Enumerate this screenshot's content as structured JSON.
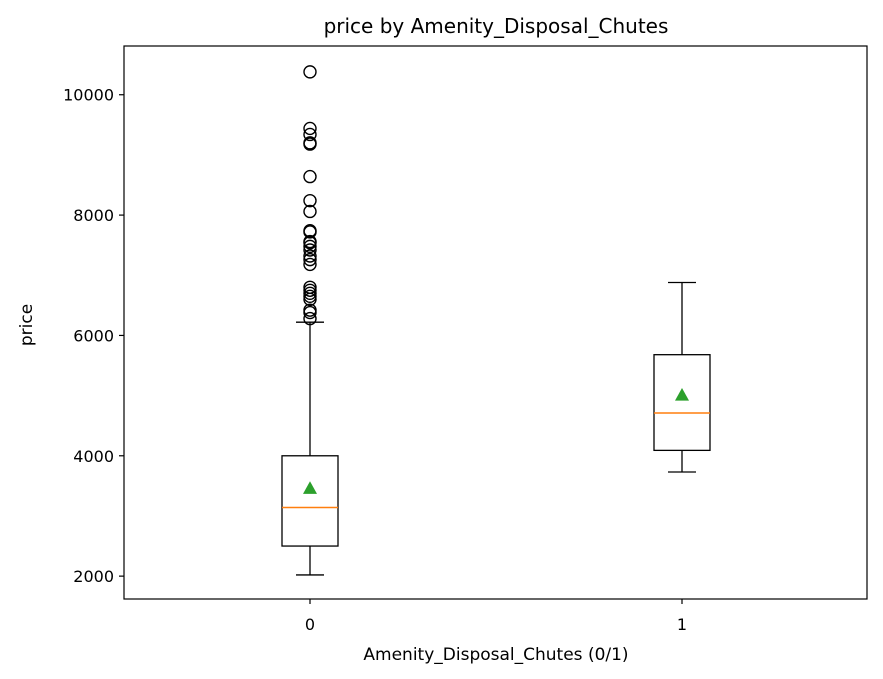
{
  "chart_data": {
    "type": "box",
    "title": "price by Amenity_Disposal_Chutes",
    "xlabel": "Amenity_Disposal_Chutes (0/1)",
    "ylabel": "price",
    "categories": [
      "0",
      "1"
    ],
    "ylim": [
      1620,
      10810
    ],
    "yticks": [
      2000,
      4000,
      6000,
      8000,
      10000
    ],
    "boxes": [
      {
        "category": "0",
        "whisker_low": 2020,
        "q1": 2500,
        "median": 3140,
        "q3": 4000,
        "whisker_high": 6220,
        "mean": 3460,
        "outliers": [
          6280,
          6380,
          6420,
          6600,
          6650,
          6700,
          6750,
          6800,
          7180,
          7260,
          7320,
          7420,
          7480,
          7540,
          7560,
          7720,
          7740,
          8060,
          8240,
          8640,
          9180,
          9200,
          9340,
          9440,
          10380
        ]
      },
      {
        "category": "1",
        "whisker_low": 3730,
        "q1": 4090,
        "median": 4710,
        "q3": 5680,
        "whisker_high": 6880,
        "mean": 5010,
        "outliers": []
      }
    ],
    "colors": {
      "box": "#000000",
      "median": "#ff7f0e",
      "mean": "#2ca02c"
    }
  }
}
